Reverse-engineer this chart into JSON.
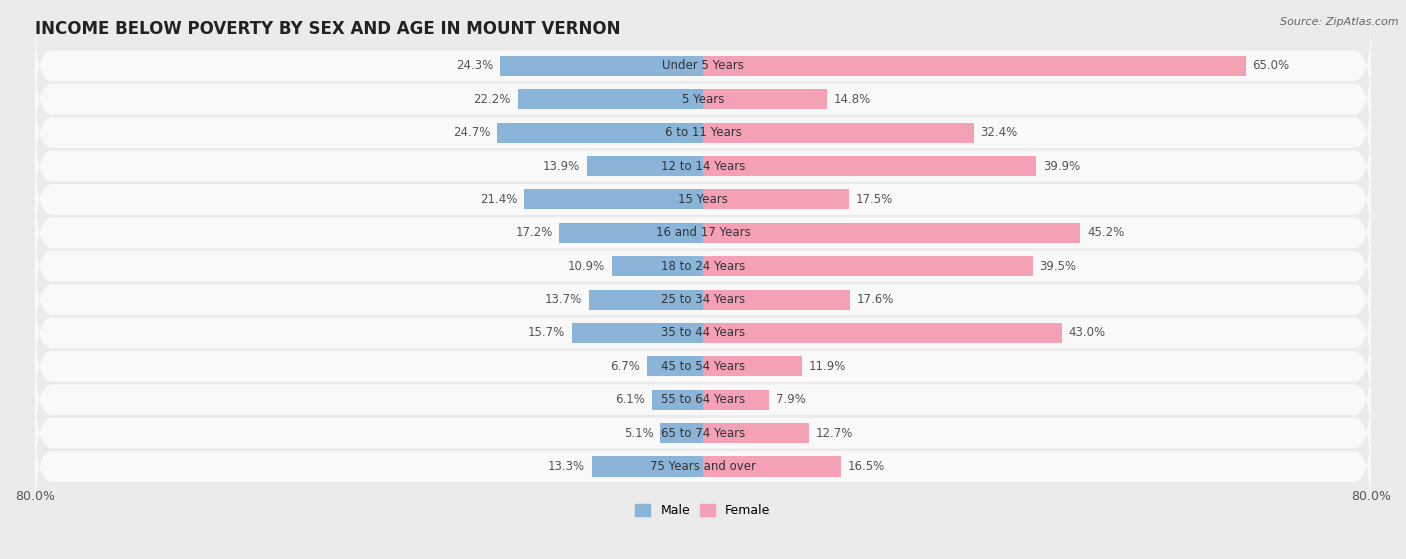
{
  "title": "INCOME BELOW POVERTY BY SEX AND AGE IN MOUNT VERNON",
  "source": "Source: ZipAtlas.com",
  "categories": [
    "Under 5 Years",
    "5 Years",
    "6 to 11 Years",
    "12 to 14 Years",
    "15 Years",
    "16 and 17 Years",
    "18 to 24 Years",
    "25 to 34 Years",
    "35 to 44 Years",
    "45 to 54 Years",
    "55 to 64 Years",
    "65 to 74 Years",
    "75 Years and over"
  ],
  "male_values": [
    24.3,
    22.2,
    24.7,
    13.9,
    21.4,
    17.2,
    10.9,
    13.7,
    15.7,
    6.7,
    6.1,
    5.1,
    13.3
  ],
  "female_values": [
    65.0,
    14.8,
    32.4,
    39.9,
    17.5,
    45.2,
    39.5,
    17.6,
    43.0,
    11.9,
    7.9,
    12.7,
    16.5
  ],
  "male_color": "#8ab4d8",
  "female_color": "#f4a0b5",
  "background_color": "#ebebeb",
  "bar_background": "#f9f9f9",
  "axis_limit": 80.0,
  "title_fontsize": 12,
  "label_fontsize": 8.5,
  "tick_fontsize": 9,
  "bar_height": 0.6,
  "legend_labels": [
    "Male",
    "Female"
  ]
}
